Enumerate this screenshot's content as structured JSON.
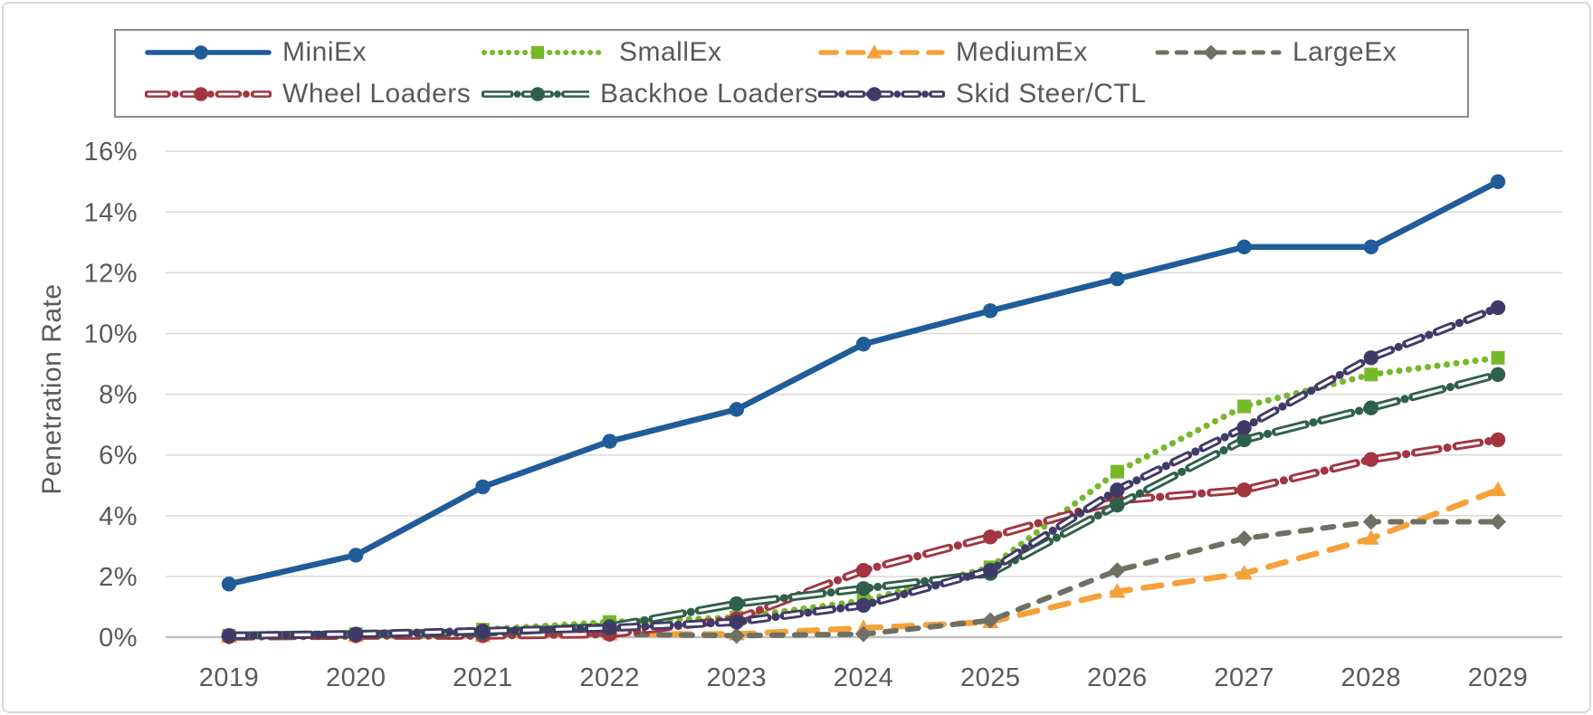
{
  "chart_data": {
    "type": "line",
    "title": "",
    "xlabel": "",
    "ylabel": "Penetration Rate",
    "x_labels": [
      "2019",
      "2020",
      "2021",
      "2022",
      "2023",
      "2024",
      "2025",
      "2026",
      "2027",
      "2028",
      "2029"
    ],
    "y_tick_labels": [
      "0%",
      "2%",
      "4%",
      "6%",
      "8%",
      "10%",
      "12%",
      "14%",
      "16%"
    ],
    "ylim": [
      0,
      16
    ],
    "grid": "horizontal",
    "legend_position": "top",
    "series": [
      {
        "name": "MiniEx",
        "color": "#1F5C99",
        "line_style": "solid",
        "marker": "circle",
        "values": [
          1.75,
          2.7,
          4.95,
          6.45,
          7.5,
          9.65,
          10.75,
          11.8,
          12.85,
          12.85,
          15.0
        ]
      },
      {
        "name": "SmallEx",
        "color": "#76B82A",
        "line_style": "dotted",
        "marker": "square",
        "values": [
          0.05,
          0.1,
          0.25,
          0.5,
          0.65,
          1.2,
          2.3,
          5.45,
          7.6,
          8.65,
          9.2
        ]
      },
      {
        "name": "MediumEx",
        "color": "#F5A13A",
        "line_style": "dash",
        "marker": "triangle",
        "values": [
          0.02,
          0.05,
          0.05,
          0.1,
          0.1,
          0.3,
          0.5,
          1.5,
          2.1,
          3.25,
          4.85
        ]
      },
      {
        "name": "LargeEx",
        "color": "#6F6F64",
        "line_style": "dash-short",
        "marker": "diamond",
        "values": [
          0.02,
          0.05,
          0.1,
          0.1,
          0.05,
          0.1,
          0.55,
          2.2,
          3.25,
          3.8,
          3.8
        ]
      },
      {
        "name": "Wheel Loaders",
        "color": "#A33540",
        "line_style": "dashdot-hollow-long",
        "marker": "circle",
        "values": [
          0.02,
          0.05,
          0.05,
          0.1,
          0.6,
          2.2,
          3.3,
          4.5,
          4.85,
          5.85,
          6.5
        ]
      },
      {
        "name": "Backhoe Loaders",
        "color": "#2F6049",
        "line_style": "longdash-hollow",
        "marker": "circle",
        "values": [
          0.05,
          0.1,
          0.15,
          0.35,
          1.1,
          1.6,
          2.1,
          4.35,
          6.5,
          7.55,
          8.65
        ]
      },
      {
        "name": "Skid Steer/CTL",
        "color": "#403A68",
        "line_style": "dashdot-hollow",
        "marker": "circle",
        "values": [
          0.05,
          0.1,
          0.2,
          0.3,
          0.5,
          1.05,
          2.2,
          4.85,
          6.9,
          9.2,
          10.85
        ]
      }
    ],
    "colors": {
      "axis_text": "#595959",
      "gridline": "#D9D9D9",
      "axis_line": "#BFBFBF",
      "legend_border": "#8A8A8A"
    }
  }
}
